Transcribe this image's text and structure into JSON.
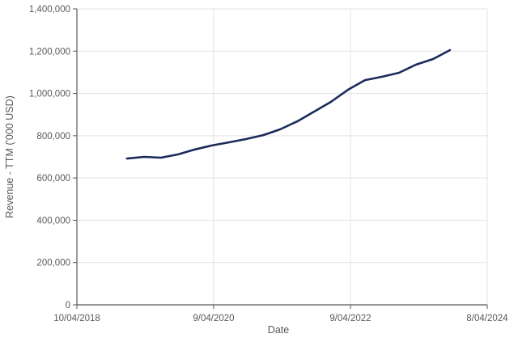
{
  "chart_data": {
    "type": "line",
    "title": "",
    "xlabel": "Date",
    "ylabel": "Revenue - TTM ('000 USD)",
    "ylim": [
      0,
      1400000
    ],
    "xlim": [
      "10/04/2018",
      "8/04/2024"
    ],
    "grid": true,
    "legend": "none",
    "y_ticks": [
      "0",
      "200,000",
      "400,000",
      "600,000",
      "800,000",
      "1,000,000",
      "1,200,000",
      "1,400,000"
    ],
    "y_tick_values": [
      0,
      200000,
      400000,
      600000,
      800000,
      1000000,
      1200000,
      1400000
    ],
    "x_ticks": [
      "10/04/2018",
      "9/04/2020",
      "9/04/2022",
      "8/04/2024"
    ],
    "series": [
      {
        "name": "Revenue - TTM",
        "color": "#1b2a5a",
        "x": [
          "Q1 2019",
          "Q2 2019",
          "Q3 2019",
          "Q4 2019",
          "Q1 2020",
          "Q2 2020",
          "Q3 2020",
          "Q4 2020",
          "Q1 2021",
          "Q2 2021",
          "Q3 2021",
          "Q4 2021",
          "Q1 2022",
          "Q2 2022",
          "Q3 2022",
          "Q4 2022",
          "Q1 2023",
          "Q2 2023",
          "Q3 2023",
          "Q4 2023"
        ],
        "x_frac": [
          0.122,
          0.164,
          0.205,
          0.247,
          0.288,
          0.329,
          0.371,
          0.412,
          0.454,
          0.495,
          0.537,
          0.578,
          0.619,
          0.661,
          0.702,
          0.744,
          0.785,
          0.826,
          0.868,
          0.909
        ],
        "values": [
          692000,
          700000,
          696000,
          712000,
          735000,
          754000,
          769000,
          784000,
          803000,
          830000,
          868000,
          914000,
          960000,
          1018000,
          1063000,
          1079000,
          1098000,
          1136000,
          1163000,
          1205000
        ]
      }
    ]
  },
  "colors": {
    "line": "#1b2a5a",
    "axis": "#595959",
    "grid": "#e3e3e3",
    "text": "#595959"
  }
}
